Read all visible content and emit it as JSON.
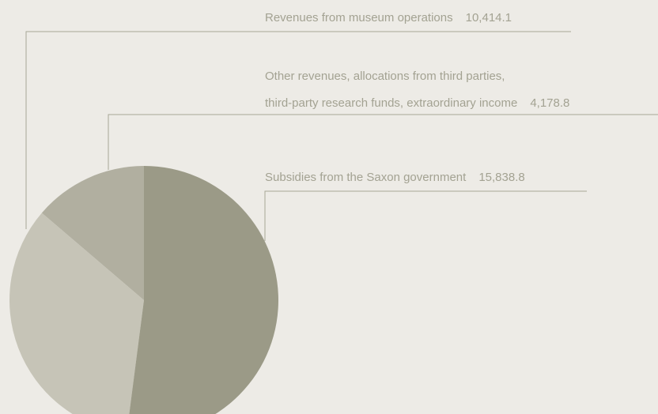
{
  "chart_data": {
    "type": "pie",
    "categories": [
      "Subsidies from the Saxon government",
      "Revenues from museum operations",
      "Other revenues, allocations from third parties,\nthird-party research funds, extraordinary income"
    ],
    "values": [
      15838.8,
      10414.1,
      4178.8
    ],
    "value_labels": [
      "15,838.8",
      "10,414.1",
      "4,178.8"
    ],
    "colors": [
      "#9b9a87",
      "#c6c4b7",
      "#b1afa0"
    ]
  }
}
